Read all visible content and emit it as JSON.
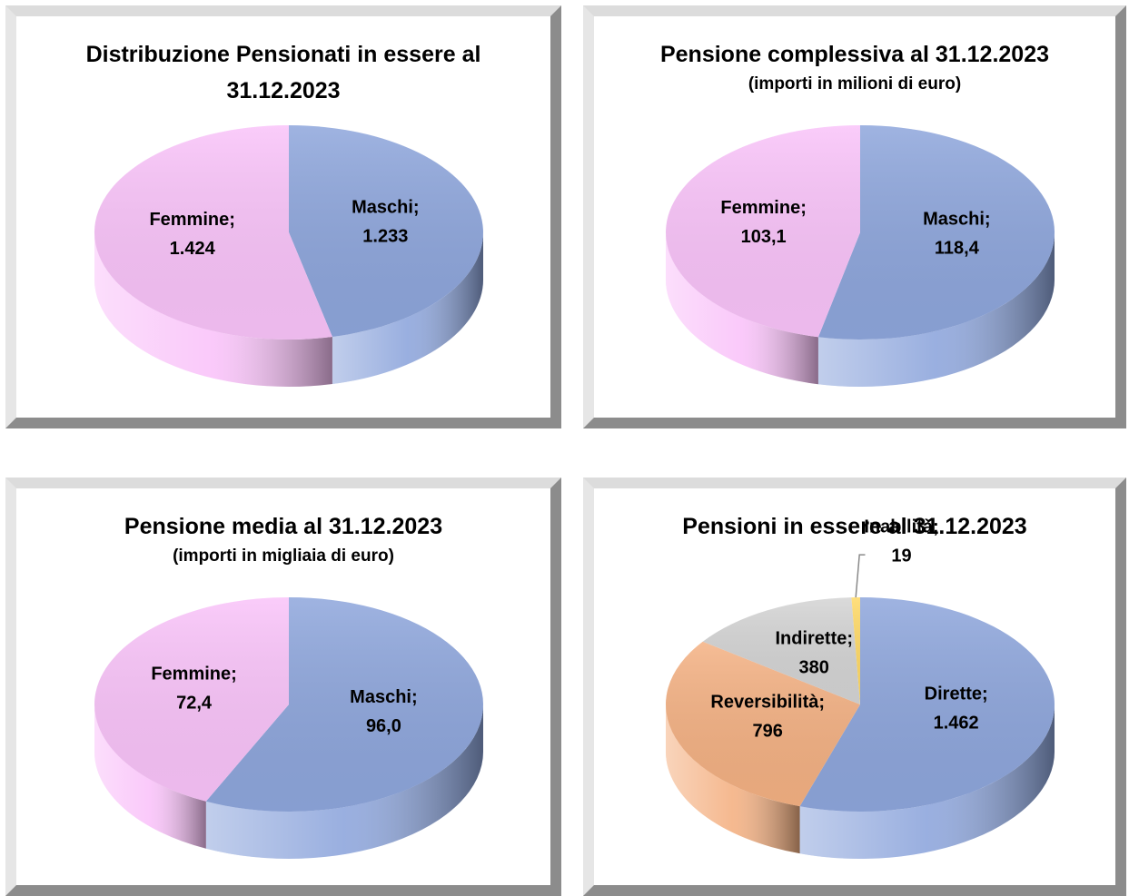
{
  "chart_data": [
    {
      "type": "pie",
      "title": "Distribuzione Pensionati in essere al 31.12.2023",
      "categories": [
        "Maschi;",
        "Femmine;"
      ],
      "values": [
        1233,
        1424
      ],
      "value_labels": [
        "1.233",
        "1.424"
      ],
      "colors": [
        "#8ea6dc",
        "#f9c3f9"
      ]
    },
    {
      "type": "pie",
      "title": "Pensione complessiva al 31.12.2023",
      "subtitle": "(importi in milioni di euro)",
      "categories": [
        "Maschi;",
        "Femmine;"
      ],
      "values": [
        118.4,
        103.1
      ],
      "value_labels": [
        "118,4",
        "103,1"
      ],
      "colors": [
        "#8ea6dc",
        "#f9c3f9"
      ]
    },
    {
      "type": "pie",
      "title": "Pensione media al 31.12.2023",
      "subtitle": "(importi in migliaia di euro)",
      "categories": [
        "Maschi;",
        "Femmine;"
      ],
      "values": [
        96.0,
        72.4
      ],
      "value_labels": [
        "96,0",
        "72,4"
      ],
      "colors": [
        "#8ea6dc",
        "#f9c3f9"
      ]
    },
    {
      "type": "pie",
      "title": "Pensioni in essere al 31.12.2023",
      "categories": [
        "Dirette;",
        "Reversibilità;",
        "Indirette;",
        "Inabilità;"
      ],
      "values": [
        1462,
        796,
        380,
        19
      ],
      "value_labels": [
        "1.462",
        "796",
        "380",
        "19"
      ],
      "colors": [
        "#8ea6dc",
        "#f4b183",
        "#d4d4d4",
        "#ffd966"
      ]
    }
  ]
}
